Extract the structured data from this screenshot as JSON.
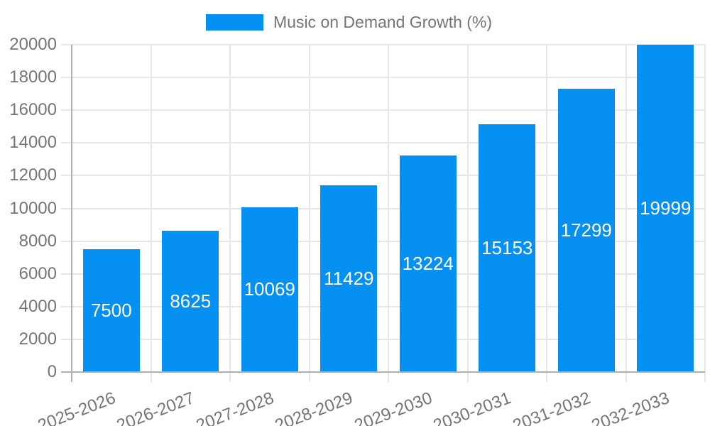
{
  "chart_data": {
    "type": "bar",
    "title": "",
    "categories": [
      "2025-2026",
      "2026-2027",
      "2027-2028",
      "2028-2029",
      "2029-2030",
      "2030-2031",
      "2031-2032",
      "2032-2033"
    ],
    "series": [
      {
        "name": "Music on Demand Growth (%)",
        "values": [
          7500,
          8625,
          10069,
          11429,
          13224,
          15153,
          17299,
          19999
        ]
      }
    ],
    "bar_value_labels": [
      "7500",
      "8625",
      "10069",
      "11429",
      "13224",
      "15153",
      "17299",
      "19999"
    ],
    "xlabel": "",
    "ylabel": "",
    "ylim": [
      0,
      20000
    ],
    "yticks": [
      0,
      2000,
      4000,
      6000,
      8000,
      10000,
      12000,
      14000,
      16000,
      18000,
      20000
    ],
    "ytick_labels": [
      "0",
      "2000",
      "4000",
      "6000",
      "8000",
      "10000",
      "12000",
      "14000",
      "16000",
      "18000",
      "20000"
    ],
    "grid": true,
    "legend_position": "top"
  },
  "legend": {
    "label": "Music on Demand Growth (%)"
  },
  "colors": {
    "bar": "#0590f2",
    "grid_line": "#e7e7e7",
    "axis_line": "#b0b0b0",
    "tick_label": "#757575",
    "bar_value_label": "#ffffff",
    "background": "#ffffff"
  }
}
